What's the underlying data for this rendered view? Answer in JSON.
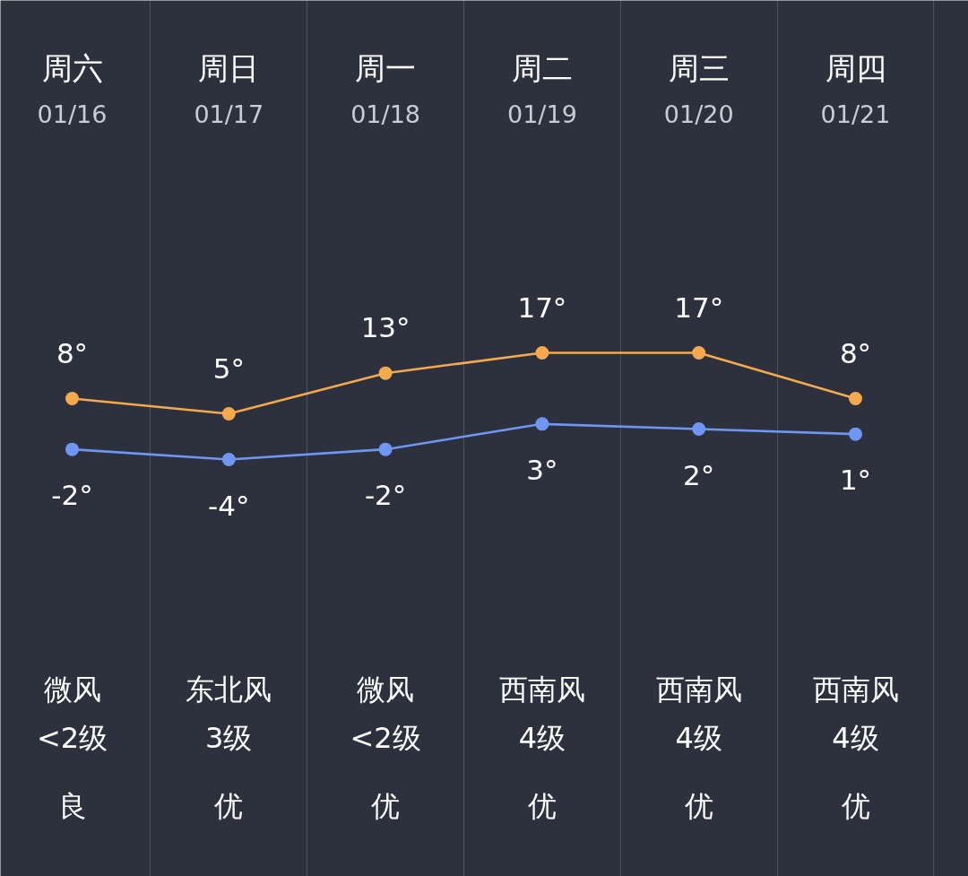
{
  "chart_data": {
    "type": "line",
    "categories": [
      "周六\n01/16",
      "周日\n01/17",
      "周一\n01/18",
      "周二\n01/19",
      "周三\n01/20",
      "周四\n01/21"
    ],
    "series": [
      {
        "color": "#f4a94e",
        "values": [
          8,
          5,
          13,
          17,
          17,
          8
        ],
        "value_labels": [
          "8°",
          "5°",
          "13°",
          "17°",
          "17°",
          "8°"
        ]
      },
      {
        "color": "#6e96f2",
        "values": [
          -2,
          -4,
          -2,
          3,
          2,
          1
        ],
        "value_labels": [
          "-2°",
          "-4°",
          "-2°",
          "3°",
          "2°",
          "1°"
        ]
      }
    ],
    "marker": "circle",
    "line_style": "solid",
    "grid": "x",
    "tick_labels": "x",
    "annotations": [
      "微风",
      "<2级",
      "良",
      "东北风",
      "3级",
      "优",
      "微风",
      "<2级",
      "优",
      "西南风",
      "4级",
      "优",
      "西南风",
      "4级",
      "优",
      "西南风",
      "4级",
      "优"
    ]
  }
}
